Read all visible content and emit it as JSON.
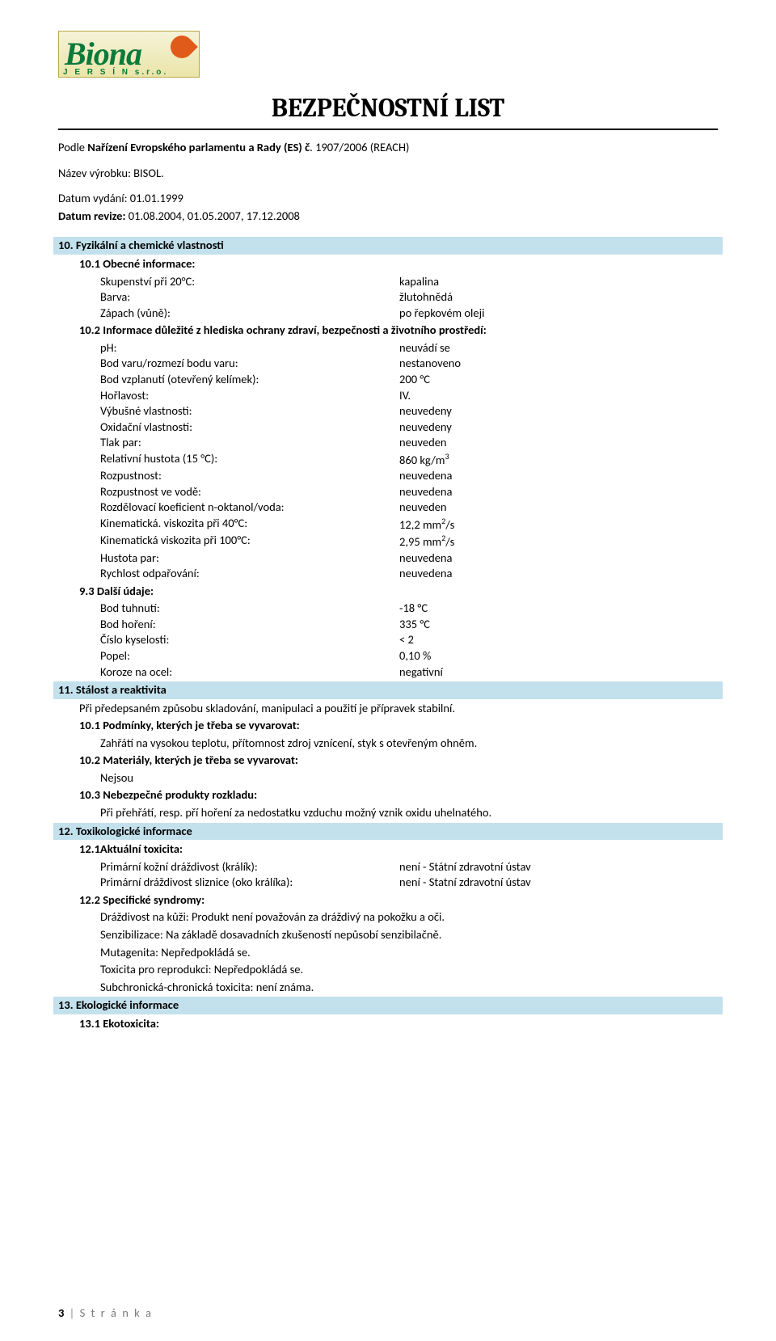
{
  "logo": {
    "brand": "Biona",
    "sub": "J E R S Í N  s.r.o."
  },
  "title": "BEZPEČNOSTNÍ LIST",
  "header": {
    "line1_prefix": "Podle ",
    "line1_bold": "Nařízení Evropské­ho parlamentu a Rady (ES) č",
    "line1_suffix": ". 1907/2006 (REACH)",
    "product_label": "Název výrobku: BISOL.",
    "issue_label": "Datum vydání: 01.01.1999",
    "revision_prefix": "Datum revize: ",
    "revision_dates": "01.08.2004, 01.05.2007, 17.12.2008"
  },
  "sections": {
    "s10": {
      "band": "10.  Fyzikální a chemické vlastnosti",
      "sub1": "10.1 Obecné informace:",
      "rows1": [
        {
          "k": "Skupenství při 20°C:",
          "v": "kapalina"
        },
        {
          "k": "Barva:",
          "v": "žlutohnědá"
        },
        {
          "k": "Zápach (vůně):",
          "v": "po řepkovém oleji"
        }
      ],
      "sub2": "10.2 Informace důležité z hlediska ochrany zdraví, bezpečnosti a životního prostředí:",
      "rows2": [
        {
          "k": "pH:",
          "v": "neuvádí se"
        },
        {
          "k": "Bod varu/rozmezí bodu varu:",
          "v": "nestanoveno"
        },
        {
          "k": "Bod vzplanutí (otevřený kelímek):",
          "v": "200 °C"
        },
        {
          "k": "Hořlavost:",
          "v": "IV."
        },
        {
          "k": "Výbušné vlastnosti:",
          "v": "neuvedeny"
        },
        {
          "k": "Oxidační vlastnosti:",
          "v": "neuvedeny"
        },
        {
          "k": "Tlak par:",
          "v": "neuveden"
        },
        {
          "k": "Relativní hustota (15 °C):",
          "v": "860 kg/m³",
          "sup": true,
          "v_base": "860 kg/m",
          "v_sup": "3"
        },
        {
          "k": "Rozpustnost:",
          "v": "neuvedena"
        },
        {
          "k": "Rozpustnost ve vodě:",
          "v": "neuvedena"
        },
        {
          "k": "Rozdělovací koeficient  n-oktanol/voda:",
          "v": "neuveden"
        },
        {
          "k": "Kinematická. viskozita při 40°C:",
          "v_base": " 12,2 mm",
          "v_sup": "2",
          "v_suffix": "/s",
          "sup": true
        },
        {
          "k": " Kinematická viskozita při 100°C:",
          "v_base": "  2,95 mm",
          "v_sup": "2",
          "v_suffix": "/s",
          "sup": true
        },
        {
          "k": " Hustota par:",
          "v": "neuvedena"
        },
        {
          "k": " Rychlost odpařování:",
          "v": "neuvedena"
        }
      ],
      "sub3": "9.3 Další údaje:",
      "rows3": [
        {
          "k": " Bod tuhnutí:",
          "v": " -18 °C"
        },
        {
          "k": " Bod hoření:",
          "v": "335 °C"
        },
        {
          "k": " Číslo kyselosti:",
          "v": "< 2"
        },
        {
          "k": " Popel:",
          "v": "0,10 %"
        },
        {
          "k": " Koroze na ocel:",
          "v": "negativní"
        }
      ]
    },
    "s11": {
      "band": "11.  Stálost a reaktivita",
      "para1": " Při předepsaném způsobu skladování, manipulaci a použití je přípravek stabilní.",
      "sub1": "10.1 Podmínky, kterých je třeba se vyvarovat:",
      "para2": " Zahřátí na vysokou teplotu, přítomnost zdroj vznícení, styk s otevřeným ohněm.",
      "sub2": "10.2 Materiály, kterých je třeba se vyvarovat:",
      "para3": " Nejsou",
      "sub3": "10.3 Nebezpečné produkty rozkladu:",
      "para4": " Při přehřátí, resp. pří hoření za nedostatku vzduchu možný vznik oxidu uhelnatého."
    },
    "s12": {
      "band": "12.  Toxikologické informace",
      "sub1": " 12.1Aktuální toxicita:",
      "rows1": [
        {
          "k": "Primární kožní dráždivost (králík):",
          "v": "není  - Státní zdravotní ústav"
        },
        {
          "k": "Primární dráždivost sliznice (oko králíka):",
          "v": "není  - Statní zdravotní ústav"
        }
      ],
      "sub2": " 12.2 Specifické syndromy:",
      "lines": [
        " Dráždivost na kůži: Produkt není považován za dráždivý na pokožku a oči.",
        " Senzibilizace: Na základě dosavadních zkušeností nepůsobí senzibilačně.",
        " Mutagenita: Nepředpokládá se.",
        " Toxicita pro reprodukci: Nepředpokládá se.",
        " Subchronická-chronická toxicita: není známa."
      ]
    },
    "s13": {
      "band": "13.  Ekologické informace",
      "sub1": " 13.1 Ekotoxicita:"
    }
  },
  "footer": {
    "page_num": "3",
    "label": "S t r á n k a"
  },
  "colors": {
    "band_bg": "#c3e1ec",
    "text": "#000000",
    "page_bg": "#ffffff",
    "logo_green": "#0a7a3a",
    "logo_orange": "#e05a1a",
    "logo_bg1": "#f5f2d8",
    "logo_bg2": "#ebe5a8"
  }
}
